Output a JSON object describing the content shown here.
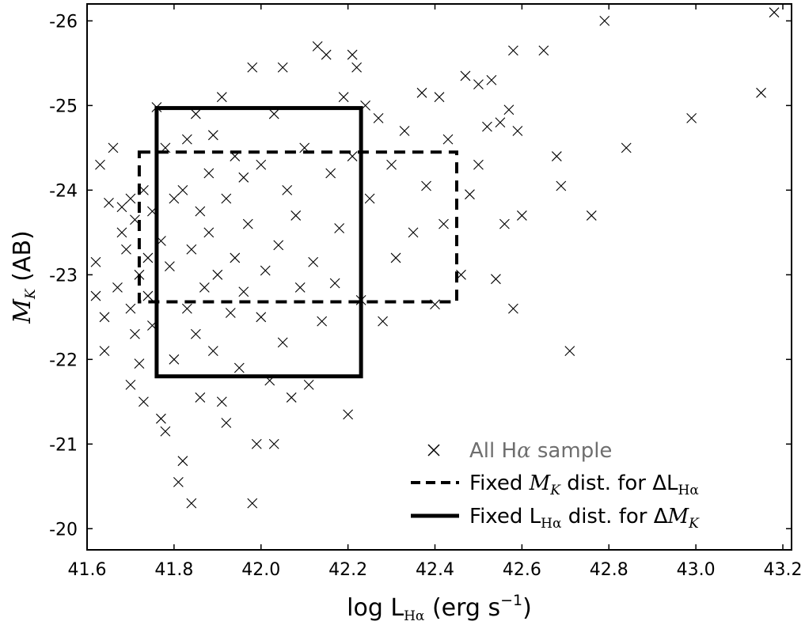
{
  "chart_data": {
    "type": "scatter",
    "xlabel": "log LHα (erg s−1)",
    "ylabel": "MK (AB)",
    "xlim": [
      41.6,
      43.22
    ],
    "ylim": [
      -19.75,
      -26.2
    ],
    "y_axis_inverted": true,
    "grid": false,
    "legend_position": "bottom-right",
    "x_ticks": [
      "41.6",
      "41.8",
      "42.0",
      "42.2",
      "42.4",
      "42.6",
      "42.8",
      "43.0",
      "43.2"
    ],
    "y_ticks": [
      "-20",
      "-21",
      "-22",
      "-23",
      "-24",
      "-25",
      "-26"
    ],
    "legend": [
      {
        "marker": "x",
        "text": "All Hα sample"
      },
      {
        "marker": "dashed-line",
        "text": "Fixed MK dist. for ΔLHα"
      },
      {
        "marker": "solid-line",
        "text": "Fixed LHα dist. for ΔMK"
      }
    ],
    "regions": [
      {
        "label": "Fixed MK dist. for ΔLHα",
        "style": "dashed",
        "x": [
          41.72,
          42.45
        ],
        "y": [
          -22.68,
          -24.45
        ]
      },
      {
        "label": "Fixed LHα dist. for ΔMK",
        "style": "solid",
        "x": [
          41.76,
          42.23
        ],
        "y": [
          -21.8,
          -24.97
        ]
      }
    ],
    "series": [
      {
        "marker": "x",
        "points": [
          [
            41.62,
            -23.15
          ],
          [
            41.62,
            -22.75
          ],
          [
            41.63,
            -24.3
          ],
          [
            41.64,
            -22.1
          ],
          [
            41.64,
            -22.5
          ],
          [
            41.65,
            -23.85
          ],
          [
            41.66,
            -24.5
          ],
          [
            41.67,
            -22.85
          ],
          [
            41.68,
            -23.8
          ],
          [
            41.68,
            -23.5
          ],
          [
            41.69,
            -23.3
          ],
          [
            41.7,
            -21.7
          ],
          [
            41.7,
            -22.6
          ],
          [
            41.7,
            -23.9
          ],
          [
            41.71,
            -23.65
          ],
          [
            41.71,
            -22.3
          ],
          [
            41.72,
            -21.95
          ],
          [
            41.72,
            -23.0
          ],
          [
            41.73,
            -24.0
          ],
          [
            41.73,
            -21.5
          ],
          [
            41.74,
            -22.75
          ],
          [
            41.74,
            -23.2
          ],
          [
            41.75,
            -23.75
          ],
          [
            41.75,
            -22.4
          ],
          [
            41.76,
            -24.98
          ],
          [
            41.77,
            -21.3
          ],
          [
            41.77,
            -23.4
          ],
          [
            41.78,
            -21.15
          ],
          [
            41.78,
            -24.5
          ],
          [
            41.79,
            -23.1
          ],
          [
            41.8,
            -22.0
          ],
          [
            41.8,
            -23.9
          ],
          [
            41.81,
            -20.55
          ],
          [
            41.82,
            -20.8
          ],
          [
            41.82,
            -24.0
          ],
          [
            41.83,
            -24.6
          ],
          [
            41.83,
            -22.6
          ],
          [
            41.84,
            -20.3
          ],
          [
            41.84,
            -23.3
          ],
          [
            41.85,
            -24.9
          ],
          [
            41.85,
            -22.3
          ],
          [
            41.86,
            -23.75
          ],
          [
            41.86,
            -21.55
          ],
          [
            41.87,
            -22.85
          ],
          [
            41.88,
            -24.2
          ],
          [
            41.88,
            -23.5
          ],
          [
            41.89,
            -22.1
          ],
          [
            41.89,
            -24.65
          ],
          [
            41.9,
            -23.0
          ],
          [
            41.91,
            -25.1
          ],
          [
            41.91,
            -21.5
          ],
          [
            41.92,
            -21.25
          ],
          [
            41.92,
            -23.9
          ],
          [
            41.93,
            -22.55
          ],
          [
            41.94,
            -24.4
          ],
          [
            41.94,
            -23.2
          ],
          [
            41.95,
            -21.9
          ],
          [
            41.96,
            -24.15
          ],
          [
            41.96,
            -22.8
          ],
          [
            41.97,
            -23.6
          ],
          [
            41.98,
            -25.45
          ],
          [
            41.98,
            -20.3
          ],
          [
            41.99,
            -21.0
          ],
          [
            42.0,
            -24.3
          ],
          [
            42.0,
            -22.5
          ],
          [
            42.01,
            -23.05
          ],
          [
            42.02,
            -21.75
          ],
          [
            42.03,
            -21.0
          ],
          [
            42.03,
            -24.9
          ],
          [
            42.04,
            -23.35
          ],
          [
            42.05,
            -25.45
          ],
          [
            42.05,
            -22.2
          ],
          [
            42.06,
            -24.0
          ],
          [
            42.07,
            -21.55
          ],
          [
            42.08,
            -23.7
          ],
          [
            42.09,
            -22.85
          ],
          [
            42.1,
            -24.5
          ],
          [
            42.11,
            -21.7
          ],
          [
            42.12,
            -23.15
          ],
          [
            42.13,
            -25.7
          ],
          [
            42.14,
            -22.45
          ],
          [
            42.15,
            -25.6
          ],
          [
            42.16,
            -24.2
          ],
          [
            42.17,
            -22.9
          ],
          [
            42.18,
            -23.55
          ],
          [
            42.19,
            -25.1
          ],
          [
            42.2,
            -21.35
          ],
          [
            42.21,
            -25.6
          ],
          [
            42.21,
            -24.4
          ],
          [
            42.22,
            -25.45
          ],
          [
            42.23,
            -22.7
          ],
          [
            42.24,
            -25.0
          ],
          [
            42.25,
            -23.9
          ],
          [
            42.27,
            -24.85
          ],
          [
            42.28,
            -22.45
          ],
          [
            42.3,
            -24.3
          ],
          [
            42.31,
            -23.2
          ],
          [
            42.33,
            -24.7
          ],
          [
            42.35,
            -23.5
          ],
          [
            42.37,
            -25.15
          ],
          [
            42.38,
            -24.05
          ],
          [
            42.4,
            -22.65
          ],
          [
            42.41,
            -25.1
          ],
          [
            42.42,
            -23.6
          ],
          [
            42.43,
            -24.6
          ],
          [
            42.46,
            -23.0
          ],
          [
            42.47,
            -25.35
          ],
          [
            42.48,
            -23.95
          ],
          [
            42.5,
            -25.25
          ],
          [
            42.5,
            -24.3
          ],
          [
            42.52,
            -24.75
          ],
          [
            42.53,
            -25.3
          ],
          [
            42.54,
            -22.95
          ],
          [
            42.55,
            -24.8
          ],
          [
            42.56,
            -23.6
          ],
          [
            42.57,
            -24.95
          ],
          [
            42.58,
            -22.6
          ],
          [
            42.58,
            -25.65
          ],
          [
            42.59,
            -24.7
          ],
          [
            42.6,
            -23.7
          ],
          [
            42.65,
            -25.65
          ],
          [
            42.68,
            -24.4
          ],
          [
            42.69,
            -24.05
          ],
          [
            42.71,
            -22.1
          ],
          [
            42.76,
            -23.7
          ],
          [
            42.79,
            -26.0
          ],
          [
            42.84,
            -24.5
          ],
          [
            42.99,
            -24.85
          ],
          [
            43.15,
            -25.15
          ],
          [
            43.18,
            -26.1
          ]
        ]
      }
    ]
  }
}
